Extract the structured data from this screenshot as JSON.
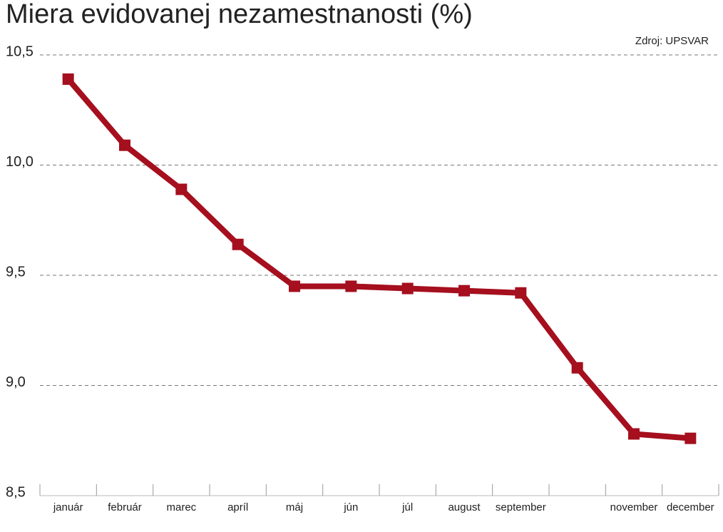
{
  "chart_data": {
    "type": "line",
    "title": "Miera evidovanej nezamestnanosti (%)",
    "source": "Zdroj: UPSVAR",
    "categories": [
      "január",
      "február",
      "marec",
      "apríl",
      "máj",
      "jún",
      "júl",
      "august",
      "september",
      null,
      "november",
      "december"
    ],
    "series": [
      {
        "name": "Miera evidovanej nezamestnanosti",
        "color": "#a50f1e",
        "values": [
          10.39,
          10.09,
          9.89,
          9.64,
          9.45,
          9.45,
          9.44,
          9.43,
          9.42,
          9.08,
          8.78,
          8.76
        ]
      }
    ],
    "ylim": [
      8.5,
      10.5
    ],
    "yticks": [
      {
        "value": 8.5,
        "label": "8,5"
      },
      {
        "value": 9.0,
        "label": "9,0"
      },
      {
        "value": 9.5,
        "label": "9,5"
      },
      {
        "value": 10.0,
        "label": "10,0"
      },
      {
        "value": 10.5,
        "label": "10,5"
      }
    ],
    "grid": true
  }
}
